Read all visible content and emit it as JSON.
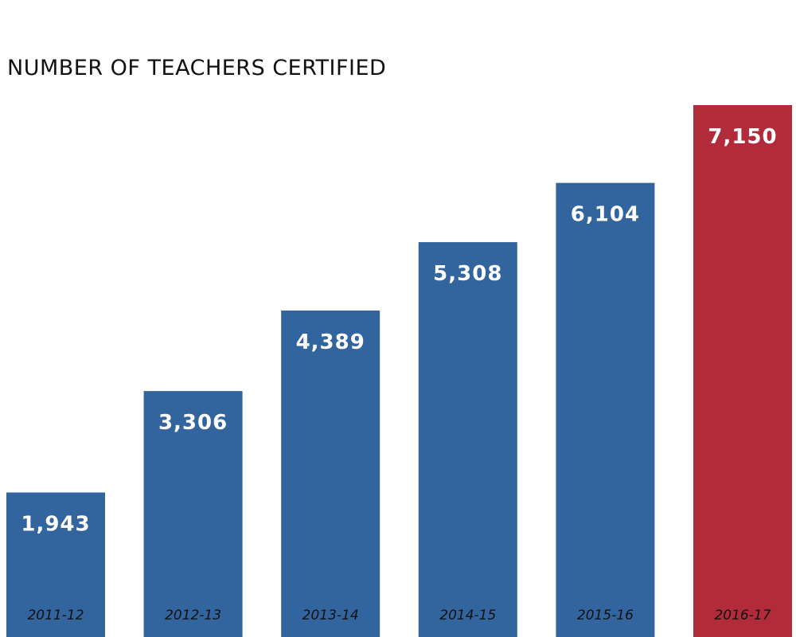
{
  "chart_data": {
    "type": "bar",
    "title": "NUMBER OF TEACHERS CERTIFIED",
    "categories": [
      "2011-12",
      "2012-13",
      "2013-14",
      "2014-15",
      "2015-16",
      "2016-17"
    ],
    "values": [
      1943,
      3306,
      4389,
      5308,
      6104,
      7150
    ],
    "value_labels": [
      "1,943",
      "3,306",
      "4,389",
      "5,308",
      "6,104",
      "7,150"
    ],
    "xlabel": "",
    "ylabel": "",
    "ylim": [
      0,
      7150
    ],
    "grid": false,
    "legend": "none",
    "colors": {
      "default_bar": "#32649e",
      "highlight_bar": "#b12b3a"
    },
    "highlight_index": 5
  }
}
